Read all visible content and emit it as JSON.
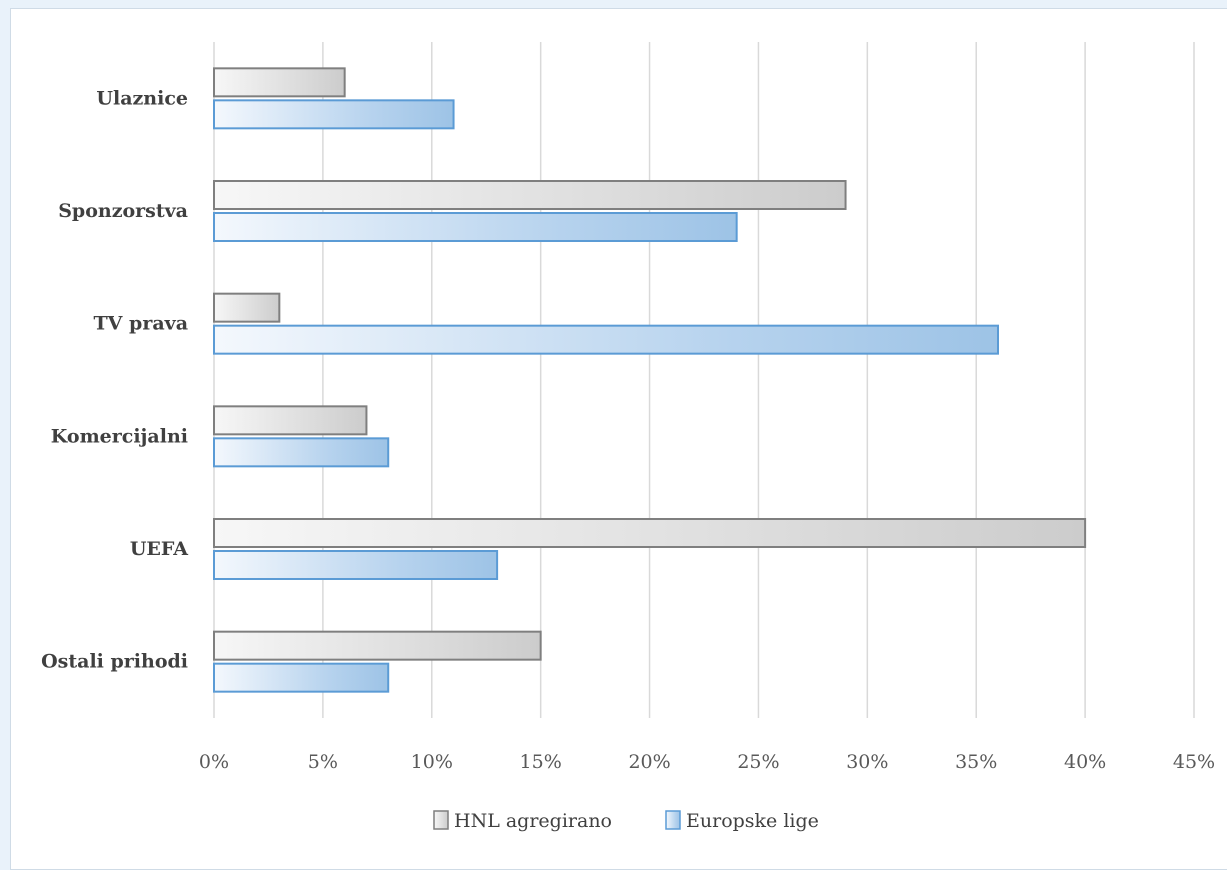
{
  "chart_data": {
    "type": "bar",
    "orientation": "horizontal",
    "categories": [
      "Ulaznice",
      "Sponzorstva",
      "TV prava",
      "Komercijalni",
      "UEFA",
      "Ostali prihodi"
    ],
    "series": [
      {
        "name": "HNL agregirano",
        "values": [
          6,
          29,
          3,
          7,
          40,
          15
        ],
        "color": "#bfbfbf",
        "border": "#7f7f7f"
      },
      {
        "name": "Europske lige",
        "values": [
          11,
          24,
          36,
          8,
          13,
          8
        ],
        "color": "#9dc3e6",
        "border": "#5b9bd5"
      }
    ],
    "x_ticks": [
      "0%",
      "5%",
      "10%",
      "15%",
      "20%",
      "25%",
      "30%",
      "35%",
      "40%",
      "45%"
    ],
    "xlim": [
      0,
      45
    ],
    "unit": "%",
    "grid": true,
    "legend_position": "bottom"
  }
}
